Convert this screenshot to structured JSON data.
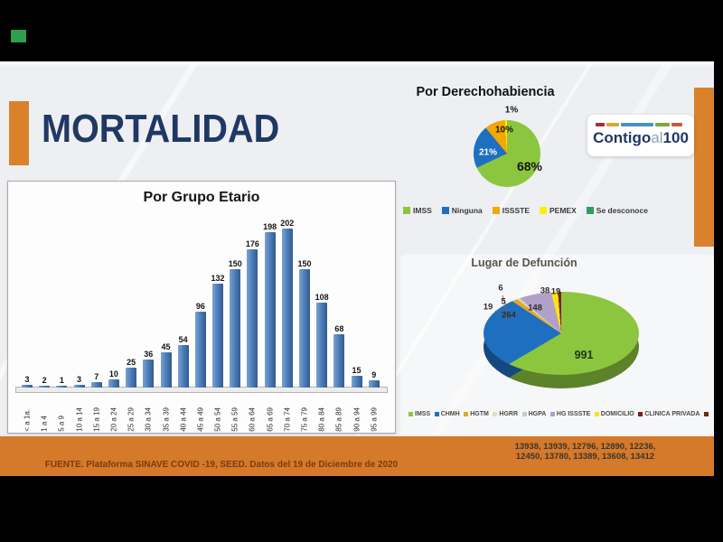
{
  "slide": {
    "title": "MORTALIDAD",
    "source_note": "FUENTE. Plataforma SINAVE COVID -19, SEED. Datos del 19 de Diciembre de 2020",
    "footer_numbers_line1": "13938, 13939, 12796, 12890, 12236,",
    "footer_numbers_line2": "12450, 13780, 13389, 13608, 13412",
    "accent_color": "#D9822B",
    "title_color": "#1F3864",
    "band_color": "#D5792A"
  },
  "logo": {
    "word1": "Contigo",
    "word2": "al",
    "word3": "100",
    "dash_colors": [
      "#9E3039",
      "#D4A93C",
      "#4A90C4",
      "#7AA844",
      "#C75B39"
    ]
  },
  "chart_data": [
    {
      "type": "bar",
      "title": "Por Grupo Etario",
      "categories": [
        "< a 1a.",
        "1 a 4",
        "5 a 9",
        "10 a 14",
        "15 a 19",
        "20 a 24",
        "25 a 29",
        "30 a 34",
        "35 a 39",
        "40 a 44",
        "45 a 49",
        "50 a 54",
        "55 a 59",
        "60 a 64",
        "65 a 69",
        "70 a 74",
        "75 a 79",
        "80 a 84",
        "85 a 89",
        "90 a 94",
        "95 a 99"
      ],
      "values": [
        3,
        2,
        1,
        3,
        7,
        10,
        25,
        36,
        45,
        54,
        96,
        132,
        150,
        176,
        198,
        202,
        150,
        108,
        68,
        15,
        9
      ],
      "bar_color": "#4F81BD",
      "xlabel": "",
      "ylabel": "",
      "ylim": [
        0,
        210
      ],
      "grid": false,
      "data_labels": true,
      "legend_position": "none"
    },
    {
      "type": "pie",
      "title": "Por Derechohabiencia",
      "slices": [
        {
          "label": "IMSS",
          "pct": 68,
          "data_label": "68%",
          "color": "#8CC63E"
        },
        {
          "label": "Ninguna",
          "pct": 21,
          "data_label": "21%",
          "color": "#1F6FC0"
        },
        {
          "label": "ISSSTE",
          "pct": 10,
          "data_label": "10%",
          "color": "#F2A800"
        },
        {
          "label": "PEMEX",
          "pct": 1,
          "data_label": "1%",
          "color": "#FFEE00"
        },
        {
          "label": "Se desconoce",
          "pct": 0,
          "data_label": "",
          "color": "#2E9E5B"
        }
      ],
      "legend_position": "bottom"
    },
    {
      "type": "pie",
      "style": "3d",
      "title": "Lugar de Defunción",
      "slices": [
        {
          "label": "IMSS",
          "value": 991,
          "color": "#8CC63E"
        },
        {
          "label": "CHMH",
          "value": 264,
          "color": "#1F6FC0"
        },
        {
          "label": "HGTM",
          "value": 19,
          "color": "#E0A826"
        },
        {
          "label": "HGRR",
          "value": 5,
          "color": "#E8DCC0"
        },
        {
          "label": "HGPA",
          "value": 6,
          "color": "#C9C9C9"
        },
        {
          "label": "HG ISSSTE",
          "value": 148,
          "color": "#B1A0C7"
        },
        {
          "label": "DOMICILIO",
          "value": 38,
          "color": "#FFE11A"
        },
        {
          "label": "CLINICA PRIVADA",
          "value": 19,
          "color": "#7B2017"
        },
        {
          "label": "",
          "value": null,
          "color": "#6B2A1A"
        }
      ],
      "legend_position": "bottom"
    }
  ]
}
